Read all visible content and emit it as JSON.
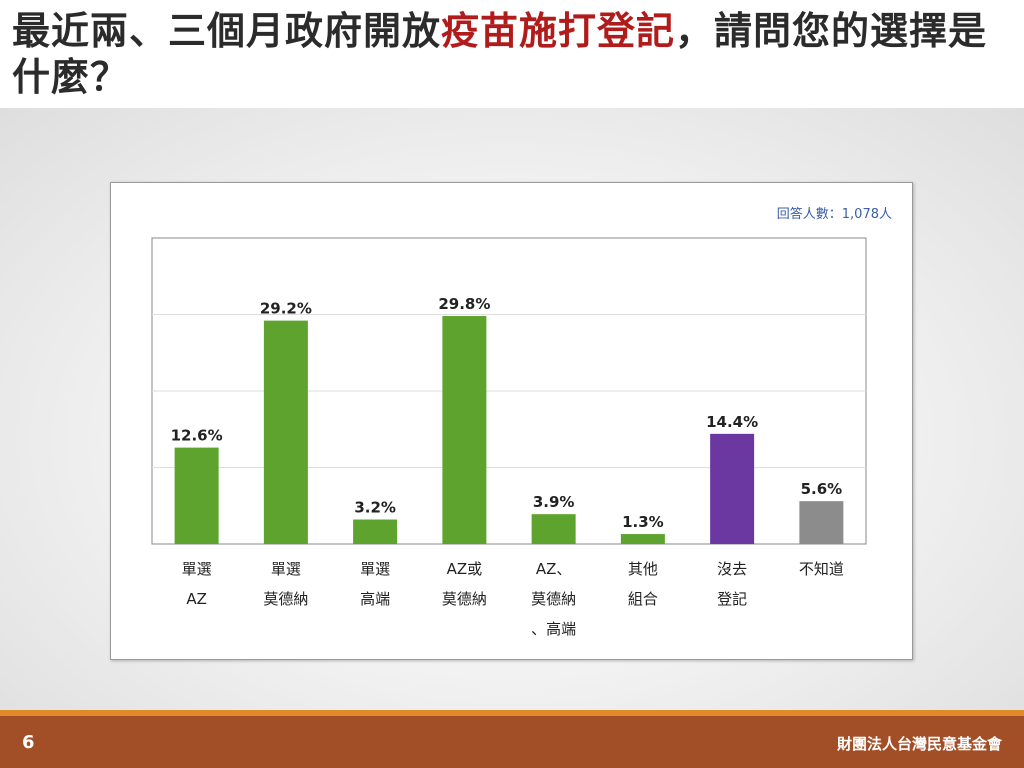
{
  "slide": {
    "title_part1": "最近兩、三個月政府開放",
    "title_highlight": "疫苗施打登記",
    "title_part2": "，請問您的選擇是什麼？"
  },
  "chart_note": "回答人數：1,078人",
  "footer": {
    "page_number": "6",
    "organization": "財團法人台灣民意基金會"
  },
  "colors": {
    "title_highlight": "#b01c1c",
    "bar_green": "#5ea32e",
    "bar_purple": "#6a38a0",
    "bar_gray": "#8c8c8c",
    "footer_bg": "#a24e26",
    "footer_stripe": "#e08a2a",
    "note_blue": "#3a5fa8"
  },
  "chart_data": {
    "type": "bar",
    "title": "",
    "xlabel": "",
    "ylabel": "",
    "ylim": [
      0,
      40
    ],
    "grid": true,
    "legend": "none",
    "categories": [
      [
        "單選",
        "AZ"
      ],
      [
        "單選",
        "莫德納"
      ],
      [
        "單選",
        "高端"
      ],
      [
        "AZ或",
        "莫德納"
      ],
      [
        "AZ、",
        "莫德納",
        "、高端"
      ],
      [
        "其他",
        "組合"
      ],
      [
        "沒去",
        "登記"
      ],
      [
        "不知道"
      ]
    ],
    "values": [
      12.6,
      29.2,
      3.2,
      29.8,
      3.9,
      1.3,
      14.4,
      5.6
    ],
    "value_labels": [
      "12.6%",
      "29.2%",
      "3.2%",
      "29.8%",
      "3.9%",
      "1.3%",
      "14.4%",
      "5.6%"
    ],
    "bar_colors": [
      "#5ea32e",
      "#5ea32e",
      "#5ea32e",
      "#5ea32e",
      "#5ea32e",
      "#5ea32e",
      "#6a38a0",
      "#8c8c8c"
    ]
  }
}
